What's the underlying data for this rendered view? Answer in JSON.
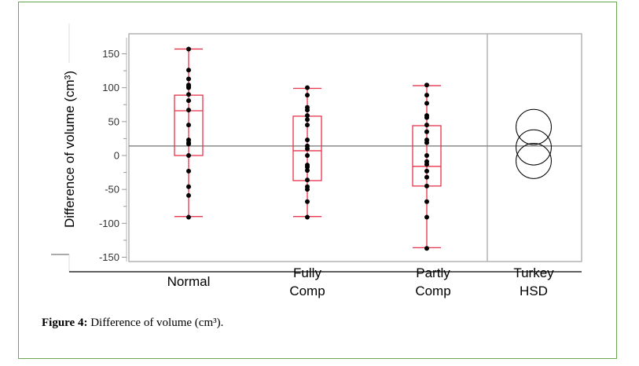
{
  "caption": {
    "label": "Figure 4:",
    "text": " Difference of volume (cm³)."
  },
  "chart_data": {
    "type": "box",
    "ylabel": "Difference of volume (cm³)",
    "ylim": [
      -155,
      175
    ],
    "yticks": [
      150,
      100,
      50,
      0,
      -50,
      -100,
      -150
    ],
    "grand_mean": 14,
    "categories": [
      "Normal",
      "Fully\nComp",
      "Partly\nComp"
    ],
    "category_labels": [
      [
        "Normal"
      ],
      [
        "Fully",
        "Comp"
      ],
      [
        "Partly",
        "Comp"
      ],
      [
        "Turkey",
        "HSD"
      ]
    ],
    "boxes": [
      {
        "name": "Normal",
        "q1": 0,
        "median": 66,
        "q3": 89,
        "whisker_low": -90,
        "whisker_high": 157,
        "points": [
          157,
          126,
          113,
          104,
          102,
          100,
          90,
          81,
          67,
          45,
          23,
          19,
          17,
          0,
          -23,
          -46,
          -59,
          -91
        ]
      },
      {
        "name": "Fully Comp",
        "q1": -37,
        "median": 7,
        "q3": 58,
        "whisker_low": -90,
        "whisker_high": 99,
        "points": [
          100,
          89,
          71,
          67,
          59,
          53,
          45,
          23,
          14,
          10,
          0,
          -14,
          -17,
          -22,
          -36,
          -46,
          -50,
          -68,
          -91
        ]
      },
      {
        "name": "Partly Comp",
        "q1": -45,
        "median": -16,
        "q3": 44,
        "whisker_low": -136,
        "whisker_high": 103,
        "points": [
          104,
          89,
          77,
          59,
          56,
          45,
          35,
          23,
          19,
          0,
          -9,
          -13,
          -23,
          -32,
          -45,
          -68,
          -91,
          -137
        ]
      }
    ],
    "comparison_circles": {
      "label": "Turkey HSD",
      "centers": [
        42,
        12,
        -8
      ],
      "radius": 26
    },
    "colors": {
      "box": "#e8334a",
      "points": "#000000",
      "frame": "#b3b3b3",
      "mean_line": "#8a8a8a",
      "border": "#6aa84f"
    }
  }
}
